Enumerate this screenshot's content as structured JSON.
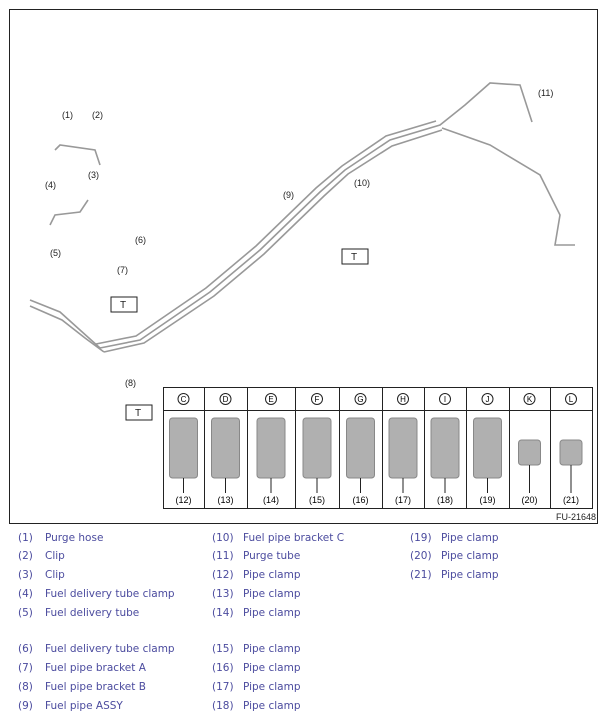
{
  "figure_id": "FU-21648",
  "callouts": [
    "(1)",
    "(2)",
    "(3)",
    "(4)",
    "(5)",
    "(6)",
    "(7)",
    "(8)",
    "(9)",
    "(10)",
    "(11)"
  ],
  "torque_mark": "T",
  "clamp_table": {
    "letters": [
      "C",
      "D",
      "E",
      "F",
      "G",
      "H",
      "I",
      "J",
      "K",
      "L"
    ],
    "numbers": [
      "(12)",
      "(13)",
      "(14)",
      "(15)",
      "(16)",
      "(17)",
      "(18)",
      "(19)",
      "(20)",
      "(21)"
    ]
  },
  "legend": [
    {
      "num": "(1)",
      "label": "Purge hose"
    },
    {
      "num": "(2)",
      "label": "Clip"
    },
    {
      "num": "(3)",
      "label": "Clip"
    },
    {
      "num": "(4)",
      "label": "Fuel delivery tube clamp"
    },
    {
      "num": "(5)",
      "label": "Fuel delivery tube"
    },
    {
      "num": "(6)",
      "label": "Fuel delivery tube clamp"
    },
    {
      "num": "(7)",
      "label": "Fuel pipe bracket A"
    },
    {
      "num": "(8)",
      "label": "Fuel pipe bracket B"
    },
    {
      "num": "(9)",
      "label": "Fuel pipe ASSY"
    },
    {
      "num": "(10)",
      "label": "Fuel pipe bracket C"
    },
    {
      "num": "(11)",
      "label": "Purge tube"
    },
    {
      "num": "(12)",
      "label": "Pipe clamp"
    },
    {
      "num": "(13)",
      "label": "Pipe clamp"
    },
    {
      "num": "(14)",
      "label": "Pipe clamp"
    },
    {
      "num": "(15)",
      "label": "Pipe clamp"
    },
    {
      "num": "(16)",
      "label": "Pipe clamp"
    },
    {
      "num": "(17)",
      "label": "Pipe clamp"
    },
    {
      "num": "(18)",
      "label": "Pipe clamp"
    },
    {
      "num": "(19)",
      "label": "Pipe clamp"
    },
    {
      "num": "(20)",
      "label": "Pipe clamp"
    },
    {
      "num": "(21)",
      "label": "Pipe clamp"
    }
  ],
  "colors": {
    "legend_text": "#4b4b9e",
    "pipe": "#9a9a9a",
    "part": "#a8a8a8"
  }
}
